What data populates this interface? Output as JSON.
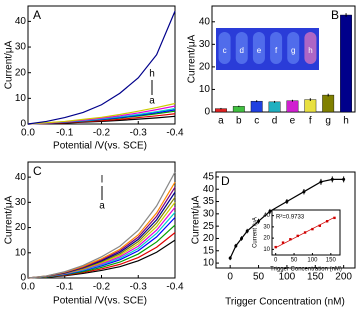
{
  "chart_data": [
    {
      "type": "line",
      "panel_label": "A",
      "xlabel": "Potential /V(vs. SCE)",
      "ylabel": "Current/μA",
      "annotations": [
        "h",
        "a"
      ],
      "x": [
        0,
        -0.05,
        -0.1,
        -0.15,
        -0.2,
        -0.25,
        -0.3,
        -0.35,
        -0.4
      ],
      "xlim": [
        0,
        -0.4
      ],
      "xticks": [
        {
          "value": 0,
          "label": "0.0"
        },
        -0.1,
        -0.2,
        -0.3,
        -0.4
      ],
      "ylim": [
        0,
        46
      ],
      "yticks": [
        0,
        10,
        20,
        30,
        40
      ],
      "series": [
        {
          "color": "#000000",
          "values": [
            0,
            0.2,
            0.4,
            0.7,
            1,
            1.4,
            1.9,
            2.4,
            3
          ]
        },
        {
          "color": "#e00000",
          "values": [
            0,
            0.2,
            0.5,
            0.9,
            1.3,
            1.8,
            2.5,
            3.2,
            4
          ]
        },
        {
          "color": "#00a000",
          "values": [
            0,
            0.3,
            0.7,
            1.1,
            1.7,
            2.3,
            3.1,
            4,
            5
          ]
        },
        {
          "color": "#0000ff",
          "values": [
            0,
            0.3,
            0.7,
            1.2,
            1.8,
            2.5,
            3.4,
            4.4,
            5.5
          ]
        },
        {
          "color": "#00cccc",
          "values": [
            0,
            0.4,
            0.8,
            1.3,
            2,
            2.8,
            3.7,
            4.8,
            6
          ]
        },
        {
          "color": "#e000e0",
          "values": [
            0,
            0.4,
            0.9,
            1.5,
            2.3,
            3.2,
            4.3,
            5.6,
            7
          ]
        },
        {
          "color": "#cccc00",
          "values": [
            0,
            0.5,
            1,
            1.8,
            2.6,
            3.7,
            5,
            6.4,
            8
          ]
        },
        {
          "color": "#00008b",
          "values": [
            0,
            1,
            2.5,
            4.5,
            7.5,
            12,
            18,
            27,
            44
          ]
        }
      ]
    },
    {
      "type": "bar",
      "panel_label": "B",
      "ylabel": "Current/μA",
      "categories": [
        "a",
        "b",
        "c",
        "d",
        "e",
        "f",
        "g",
        "h"
      ],
      "values": [
        1.5,
        2.5,
        4.8,
        4.5,
        5,
        5.5,
        7.5,
        43
      ],
      "errors": [
        0.3,
        0.3,
        0.4,
        0.4,
        0.4,
        0.6,
        0.6,
        0.8
      ],
      "colors": [
        "#e02020",
        "#40c040",
        "#2040e0",
        "#20b0c0",
        "#d020d0",
        "#e8e040",
        "#808000",
        "#00008b"
      ],
      "image_labels": [
        "c",
        "d",
        "e",
        "f",
        "g",
        "h"
      ],
      "ylim": [
        0,
        47
      ],
      "yticks": [
        0,
        10,
        20,
        30,
        40
      ]
    },
    {
      "type": "line",
      "panel_label": "C",
      "xlabel": "Potential /V(vs. SCE)",
      "ylabel": "Current/μA",
      "annotations": [
        "l",
        "a"
      ],
      "x": [
        0,
        -0.05,
        -0.1,
        -0.15,
        -0.2,
        -0.25,
        -0.3,
        -0.35,
        -0.4
      ],
      "xlim": [
        0,
        -0.4
      ],
      "xticks": [
        {
          "value": 0,
          "label": "0.0"
        },
        -0.1,
        -0.2,
        -0.3,
        -0.4
      ],
      "ylim": [
        0,
        46
      ],
      "yticks": [
        0,
        10,
        20,
        30,
        40
      ],
      "series": [
        {
          "color": "#000000",
          "values": [
            0,
            0.3,
            0.9,
            1.8,
            3,
            4.5,
            6.8,
            10.2,
            15
          ]
        },
        {
          "color": "#e00000",
          "values": [
            0,
            0.4,
            1.1,
            2.2,
            3.6,
            5.4,
            8.1,
            12.2,
            18
          ]
        },
        {
          "color": "#00a000",
          "values": [
            0,
            0.4,
            1.3,
            2.5,
            4.2,
            6.3,
            9.5,
            14.3,
            21
          ]
        },
        {
          "color": "#0000ff",
          "values": [
            0,
            0.5,
            1.4,
            2.9,
            4.8,
            7.2,
            10.8,
            16.3,
            24
          ]
        },
        {
          "color": "#00cccc",
          "values": [
            0,
            0.5,
            1.6,
            3.1,
            5.2,
            7.8,
            11.7,
            17.7,
            26
          ]
        },
        {
          "color": "#e000e0",
          "values": [
            0,
            0.6,
            1.7,
            3.4,
            5.6,
            8.4,
            12.6,
            19,
            28
          ]
        },
        {
          "color": "#cccc00",
          "values": [
            0,
            0.6,
            1.8,
            3.6,
            6,
            9,
            13.5,
            20.4,
            30
          ]
        },
        {
          "color": "#808000",
          "values": [
            0,
            0.6,
            1.9,
            3.8,
            6.4,
            9.6,
            14.4,
            21.8,
            32
          ]
        },
        {
          "color": "#00008b",
          "values": [
            0,
            0.7,
            2,
            4.1,
            6.8,
            10.2,
            15.3,
            23.1,
            34
          ]
        },
        {
          "color": "#800080",
          "values": [
            0,
            0.7,
            2.2,
            4.3,
            7.2,
            10.8,
            16.2,
            24.5,
            36
          ]
        },
        {
          "color": "#ff8800",
          "values": [
            0,
            0.8,
            2.3,
            4.6,
            7.6,
            11.4,
            17.1,
            25.8,
            38
          ]
        },
        {
          "color": "#888888",
          "values": [
            0,
            0.8,
            2.5,
            5,
            8.4,
            12.6,
            18.9,
            28.6,
            42
          ]
        }
      ]
    },
    {
      "type": "line",
      "panel_label": "D",
      "xlabel": "Trigger Concentration (nM)",
      "ylabel": "Current/μA",
      "x": [
        0,
        10,
        20,
        30,
        50,
        70,
        100,
        130,
        160,
        180,
        200
      ],
      "xlim": [
        -25,
        220
      ],
      "xticks": [
        0,
        50,
        100,
        150,
        200
      ],
      "ylim": [
        8,
        47
      ],
      "yticks": [
        10,
        15,
        20,
        25,
        30,
        35,
        40,
        45
      ],
      "markers": true,
      "series": [
        {
          "color": "#000000",
          "values": [
            12,
            17,
            20,
            23,
            27,
            31,
            35,
            39,
            43,
            44,
            44
          ],
          "errors": [
            0.8,
            0.8,
            0.9,
            0.9,
            1,
            1,
            1,
            1.1,
            1.2,
            1.2,
            1.2
          ]
        }
      ]
    },
    {
      "type": "scatter",
      "inset": true,
      "annotation": "R²=0.9733",
      "xlabel": "Trigger Concentration (nM)",
      "ylabel": "Current /μA",
      "x": [
        0,
        20,
        40,
        60,
        80,
        100,
        120,
        140,
        160
      ],
      "xlim": [
        -10,
        175
      ],
      "xticks": [
        0,
        50,
        100,
        150
      ],
      "ylim": [
        5,
        45
      ],
      "yticks": [
        10,
        20,
        30,
        40
      ],
      "series": [
        {
          "color": "#d00000",
          "values": [
            12,
            16,
            19,
            22,
            25,
            28,
            31,
            35,
            38
          ]
        },
        {
          "color": "#d00000",
          "style": "line",
          "x": [
            0,
            160
          ],
          "values": [
            11.5,
            38.5
          ]
        }
      ]
    }
  ]
}
